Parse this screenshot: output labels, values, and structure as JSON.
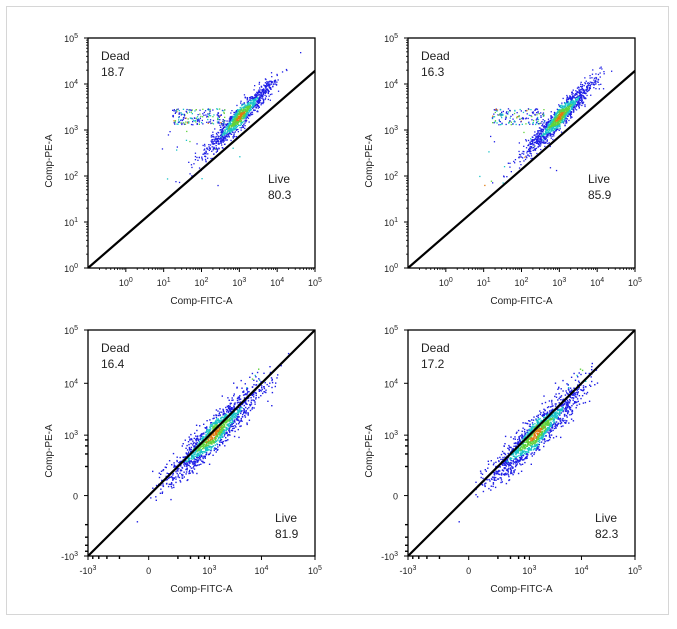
{
  "chart_data": [
    {
      "type": "scatter",
      "panel": "top-left",
      "xlabel": "Comp-FITC-A",
      "ylabel": "Comp-PE-A",
      "x_scale": "log",
      "y_scale": "log",
      "xlim": [
        0.1,
        100000
      ],
      "ylim": [
        1,
        100000
      ],
      "x_ticks": [
        {
          "v": 1,
          "b": "10",
          "e": "0"
        },
        {
          "v": 10,
          "b": "10",
          "e": "1"
        },
        {
          "v": 100,
          "b": "10",
          "e": "2"
        },
        {
          "v": 1000,
          "b": "10",
          "e": "3"
        },
        {
          "v": 10000,
          "b": "10",
          "e": "4"
        },
        {
          "v": 100000,
          "b": "10",
          "e": "5"
        }
      ],
      "y_ticks": [
        {
          "v": 1,
          "b": "10",
          "e": "0"
        },
        {
          "v": 10,
          "b": "10",
          "e": "1"
        },
        {
          "v": 100,
          "b": "10",
          "e": "2"
        },
        {
          "v": 1000,
          "b": "10",
          "e": "3"
        },
        {
          "v": 10000,
          "b": "10",
          "e": "4"
        },
        {
          "v": 100000,
          "b": "10",
          "e": "5"
        }
      ],
      "gates": [
        {
          "name": "Dead",
          "value": "18.7",
          "position": "top-left"
        },
        {
          "name": "Live",
          "value": "80.3",
          "position": "right"
        }
      ],
      "gate_line": {
        "from": [
          0.1,
          1
        ],
        "to": [
          1000000,
          100000
        ]
      },
      "population": {
        "center_x": 1000,
        "center_y": 2000,
        "spread": "medium",
        "tail": "left-dead"
      }
    },
    {
      "type": "scatter",
      "panel": "top-right",
      "xlabel": "Comp-FITC-A",
      "ylabel": "Comp-PE-A",
      "x_scale": "log",
      "y_scale": "log",
      "xlim": [
        0.1,
        100000
      ],
      "ylim": [
        1,
        100000
      ],
      "x_ticks": [
        {
          "v": 1,
          "b": "10",
          "e": "0"
        },
        {
          "v": 10,
          "b": "10",
          "e": "1"
        },
        {
          "v": 100,
          "b": "10",
          "e": "2"
        },
        {
          "v": 1000,
          "b": "10",
          "e": "3"
        },
        {
          "v": 10000,
          "b": "10",
          "e": "4"
        },
        {
          "v": 100000,
          "b": "10",
          "e": "5"
        }
      ],
      "y_ticks": [
        {
          "v": 1,
          "b": "10",
          "e": "0"
        },
        {
          "v": 10,
          "b": "10",
          "e": "1"
        },
        {
          "v": 100,
          "b": "10",
          "e": "2"
        },
        {
          "v": 1000,
          "b": "10",
          "e": "3"
        },
        {
          "v": 10000,
          "b": "10",
          "e": "4"
        },
        {
          "v": 100000,
          "b": "10",
          "e": "5"
        }
      ],
      "gates": [
        {
          "name": "Dead",
          "value": "16.3",
          "position": "top-left"
        },
        {
          "name": "Live",
          "value": "85.9",
          "position": "right"
        }
      ],
      "gate_line": {
        "from": [
          0.1,
          1
        ],
        "to": [
          1000000,
          100000
        ]
      },
      "population": {
        "center_x": 1000,
        "center_y": 2000,
        "spread": "medium",
        "tail": "left-dead"
      }
    },
    {
      "type": "scatter",
      "panel": "bottom-left",
      "xlabel": "Comp-FITC-A",
      "ylabel": "Comp-PE-A",
      "x_scale": "biexponential",
      "y_scale": "biexponential",
      "xlim": [
        -1000,
        100000
      ],
      "ylim": [
        -1000,
        100000
      ],
      "x_ticks": [
        {
          "v": -1000,
          "b": "-10",
          "e": "3"
        },
        {
          "v": 0,
          "b": "0",
          "e": ""
        },
        {
          "v": 1000,
          "b": "10",
          "e": "3"
        },
        {
          "v": 10000,
          "b": "10",
          "e": "4"
        },
        {
          "v": 100000,
          "b": "10",
          "e": "5"
        }
      ],
      "y_ticks": [
        {
          "v": -1000,
          "b": "-10",
          "e": "3"
        },
        {
          "v": 0,
          "b": "0",
          "e": ""
        },
        {
          "v": 1000,
          "b": "10",
          "e": "3"
        },
        {
          "v": 10000,
          "b": "10",
          "e": "4"
        },
        {
          "v": 100000,
          "b": "10",
          "e": "5"
        }
      ],
      "gates": [
        {
          "name": "Dead",
          "value": "16.4",
          "position": "top-left"
        },
        {
          "name": "Live",
          "value": "81.9",
          "position": "bottom-right"
        }
      ],
      "gate_line": {
        "from": [
          -1000,
          -1000
        ],
        "to": [
          100000,
          100000
        ]
      },
      "population": {
        "center_x": 1200,
        "center_y": 1200,
        "spread": "elongated",
        "tail": "none"
      }
    },
    {
      "type": "scatter",
      "panel": "bottom-right",
      "xlabel": "Comp-FITC-A",
      "ylabel": "Comp-PE-A",
      "x_scale": "biexponential",
      "y_scale": "biexponential",
      "xlim": [
        -1000,
        100000
      ],
      "ylim": [
        -1000,
        100000
      ],
      "x_ticks": [
        {
          "v": -1000,
          "b": "-10",
          "e": "3"
        },
        {
          "v": 0,
          "b": "0",
          "e": ""
        },
        {
          "v": 1000,
          "b": "10",
          "e": "3"
        },
        {
          "v": 10000,
          "b": "10",
          "e": "4"
        },
        {
          "v": 100000,
          "b": "10",
          "e": "5"
        }
      ],
      "y_ticks": [
        {
          "v": -1000,
          "b": "-10",
          "e": "3"
        },
        {
          "v": 0,
          "b": "0",
          "e": ""
        },
        {
          "v": 1000,
          "b": "10",
          "e": "3"
        },
        {
          "v": 10000,
          "b": "10",
          "e": "4"
        },
        {
          "v": 100000,
          "b": "10",
          "e": "5"
        }
      ],
      "gates": [
        {
          "name": "Dead",
          "value": "17.2",
          "position": "top-left"
        },
        {
          "name": "Live",
          "value": "82.3",
          "position": "bottom-right"
        }
      ],
      "gate_line": {
        "from": [
          -1000,
          -1000
        ],
        "to": [
          100000,
          100000
        ]
      },
      "population": {
        "center_x": 1300,
        "center_y": 1200,
        "spread": "elongated",
        "tail": "none"
      }
    }
  ],
  "colors": {
    "density_low": "#1f1fe6",
    "density_mid": "#19c3c8",
    "density_high": "#5fd23c",
    "density_peak": "#e07a10",
    "gate_line": "#000000",
    "axis": "#000000"
  }
}
